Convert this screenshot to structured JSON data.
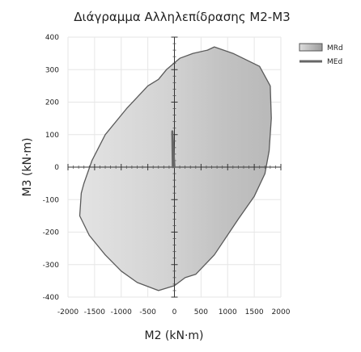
{
  "chart_data": {
    "type": "area",
    "title": "Διάγραμμα Αλληλεπίδρασης M2-M3",
    "xlabel": "M2 (kN·m)",
    "ylabel": "M3 (kN·m)",
    "xlim": [
      -2000,
      2000
    ],
    "ylim": [
      -400,
      400
    ],
    "x_ticks": [
      -2000,
      -1500,
      -1000,
      -500,
      0,
      500,
      1000,
      1500,
      2000
    ],
    "y_ticks": [
      -400,
      -300,
      -200,
      -100,
      0,
      100,
      200,
      300,
      400
    ],
    "x_tick_labels": [
      "-2000",
      "-1500",
      "-1000",
      "-500",
      "0",
      "500",
      "1000",
      "1500",
      "2000"
    ],
    "y_tick_labels": [
      "-400",
      "-300",
      "-200",
      "-100",
      "0",
      "100",
      "200",
      "300",
      "400"
    ],
    "grid": true,
    "legend_position": "top-right",
    "series": [
      {
        "name": "MRd",
        "kind": "area",
        "color": "#c8c8c8",
        "stroke": "#5a5a5a",
        "points": [
          [
            -1750,
            -80
          ],
          [
            -1780,
            -150
          ],
          [
            -1600,
            -210
          ],
          [
            -1300,
            -270
          ],
          [
            -1000,
            -320
          ],
          [
            -700,
            -355
          ],
          [
            -300,
            -380
          ],
          [
            0,
            -365
          ],
          [
            200,
            -340
          ],
          [
            400,
            -330
          ],
          [
            750,
            -270
          ],
          [
            1200,
            -160
          ],
          [
            1500,
            -90
          ],
          [
            1700,
            -20
          ],
          [
            1780,
            50
          ],
          [
            1820,
            150
          ],
          [
            1800,
            250
          ],
          [
            1600,
            310
          ],
          [
            1100,
            350
          ],
          [
            750,
            370
          ],
          [
            620,
            360
          ],
          [
            350,
            350
          ],
          [
            100,
            335
          ],
          [
            -150,
            300
          ],
          [
            -300,
            270
          ],
          [
            -500,
            250
          ],
          [
            -900,
            180
          ],
          [
            -1300,
            100
          ],
          [
            -1550,
            20
          ],
          [
            -1700,
            -50
          ]
        ]
      },
      {
        "name": "MEd",
        "kind": "line",
        "color": "#666666",
        "points": [
          [
            0,
            0
          ],
          [
            -40,
            110
          ],
          [
            -30,
            0
          ]
        ]
      }
    ]
  }
}
